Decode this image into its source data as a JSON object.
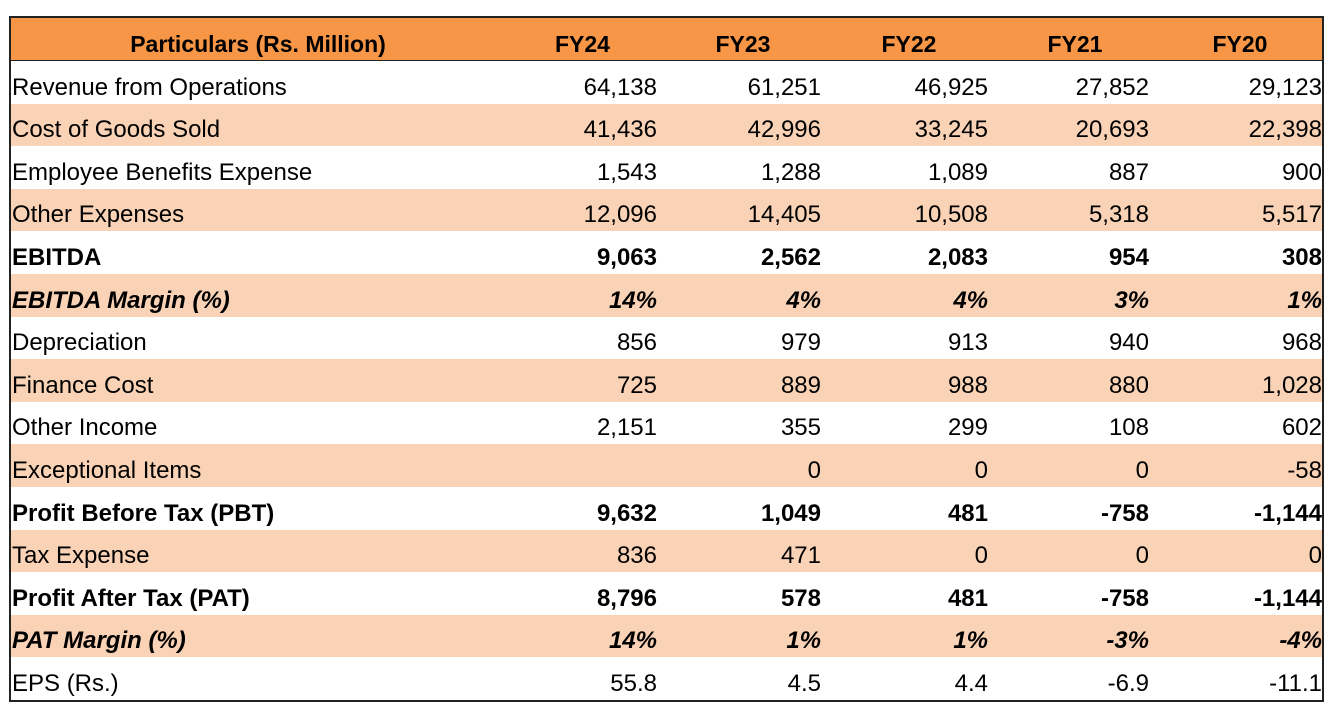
{
  "table": {
    "headers": [
      "Particulars (Rs. Million)",
      "FY24",
      "FY23",
      "FY22",
      "FY21",
      "FY20"
    ],
    "rows": [
      {
        "label": "Revenue from Operations",
        "values": [
          "64,138",
          "61,251",
          "46,925",
          "27,852",
          "29,123"
        ],
        "style": "normal",
        "shaded": false
      },
      {
        "label": "Cost of Goods Sold",
        "values": [
          "41,436",
          "42,996",
          "33,245",
          "20,693",
          "22,398"
        ],
        "style": "normal",
        "shaded": true
      },
      {
        "label": "Employee Benefits Expense",
        "values": [
          "1,543",
          "1,288",
          "1,089",
          "887",
          "900"
        ],
        "style": "normal",
        "shaded": false
      },
      {
        "label": "Other Expenses",
        "values": [
          "12,096",
          "14,405",
          "10,508",
          "5,318",
          "5,517"
        ],
        "style": "normal",
        "shaded": true
      },
      {
        "label": "EBITDA",
        "values": [
          "9,063",
          "2,562",
          "2,083",
          "954",
          "308"
        ],
        "style": "bold",
        "shaded": false
      },
      {
        "label": "EBITDA Margin (%)",
        "values": [
          "14%",
          "4%",
          "4%",
          "3%",
          "1%"
        ],
        "style": "italic",
        "shaded": true
      },
      {
        "label": "Depreciation",
        "values": [
          "856",
          "979",
          "913",
          "940",
          "968"
        ],
        "style": "normal",
        "shaded": false
      },
      {
        "label": "Finance Cost",
        "values": [
          "725",
          "889",
          "988",
          "880",
          "1,028"
        ],
        "style": "normal",
        "shaded": true
      },
      {
        "label": "Other Income",
        "values": [
          "2,151",
          "355",
          "299",
          "108",
          "602"
        ],
        "style": "normal",
        "shaded": false
      },
      {
        "label": "Exceptional Items",
        "values": [
          "",
          "0",
          "0",
          "0",
          "-58"
        ],
        "style": "normal",
        "shaded": true
      },
      {
        "label": "Profit Before Tax (PBT)",
        "values": [
          "9,632",
          "1,049",
          "481",
          "-758",
          "-1,144"
        ],
        "style": "bold",
        "shaded": false
      },
      {
        "label": "Tax Expense",
        "values": [
          "836",
          "471",
          "0",
          "0",
          "0"
        ],
        "style": "normal",
        "shaded": true
      },
      {
        "label": "Profit After Tax (PAT)",
        "values": [
          "8,796",
          "578",
          "481",
          "-758",
          "-1,144"
        ],
        "style": "bold",
        "shaded": false
      },
      {
        "label": "PAT Margin (%)",
        "values": [
          "14%",
          "1%",
          "1%",
          "-3%",
          "-4%"
        ],
        "style": "italic",
        "shaded": true
      },
      {
        "label": "EPS (Rs.)",
        "values": [
          "55.8",
          "4.5",
          "4.4",
          "-6.9",
          "-11.1"
        ],
        "style": "normal",
        "shaded": false
      }
    ]
  },
  "colors": {
    "header_background": "#f79646",
    "shaded_row_background": "#fad3b6",
    "border": "#222222"
  }
}
